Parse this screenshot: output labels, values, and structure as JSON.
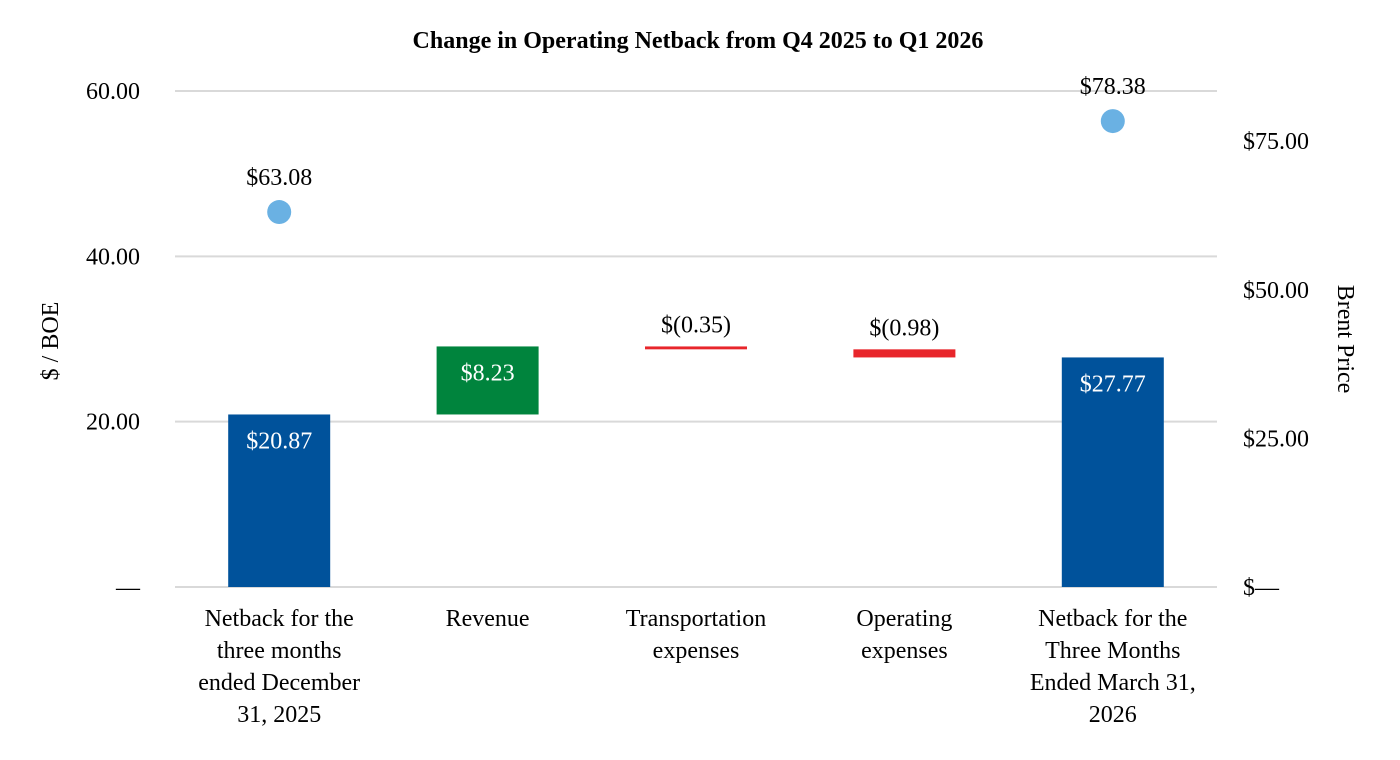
{
  "chart_data": {
    "type": "bar",
    "subtype": "waterfall-with-secondary-scatter",
    "title": "Change in Operating Netback from Q4 2025 to Q1 2026",
    "ylabel": "$ / BOE",
    "y2label": "Brent Price",
    "ylim": [
      0,
      60
    ],
    "y_ticks": [
      "—",
      "20.00",
      "40.00",
      "60.00"
    ],
    "y_tick_values": [
      0,
      20,
      40,
      60
    ],
    "y2lim": [
      0,
      90
    ],
    "y2_ticks": [
      "$—",
      "$25.00",
      "$50.00",
      "$75.00"
    ],
    "y2_tick_values": [
      0,
      25,
      50,
      75
    ],
    "grid": true,
    "categories": [
      [
        "Netback for the",
        "three months",
        "ended December",
        "31, 2025"
      ],
      [
        "Revenue"
      ],
      [
        "Transportation",
        "expenses"
      ],
      [
        "Operating",
        "expenses"
      ],
      [
        "Netback for the",
        "Three Months",
        "Ended March 31,",
        "2026"
      ]
    ],
    "bars": [
      {
        "kind": "total",
        "start": 0,
        "end": 20.87,
        "label": "$20.87",
        "color": "#00529b"
      },
      {
        "kind": "increase",
        "start": 20.87,
        "end": 29.1,
        "label": "$8.23",
        "color": "#00843d"
      },
      {
        "kind": "decrease",
        "start": 29.1,
        "end": 28.75,
        "label": "$(0.35)",
        "color": "#e8262b"
      },
      {
        "kind": "decrease",
        "start": 28.75,
        "end": 27.77,
        "label": "$(0.98)",
        "color": "#e8262b"
      },
      {
        "kind": "total",
        "start": 0,
        "end": 27.77,
        "label": "$27.77",
        "color": "#00529b"
      }
    ],
    "brent_series": {
      "points": [
        {
          "category_index": 0,
          "value": 63.08,
          "label": "$63.08"
        },
        {
          "category_index": 4,
          "value": 78.38,
          "label": "$78.38"
        }
      ],
      "color": "#6ab1e3"
    },
    "colors": {
      "gridline": "#d9d9d9",
      "total": "#00529b",
      "increase": "#00843d",
      "decrease": "#e8262b",
      "point": "#6ab1e3"
    }
  }
}
